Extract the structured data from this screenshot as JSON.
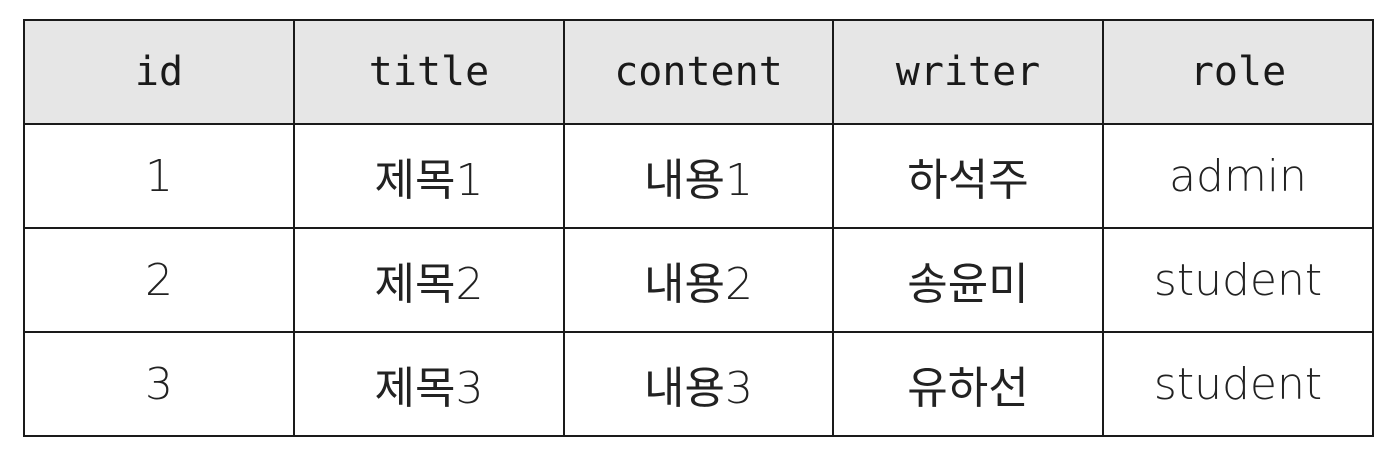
{
  "table": {
    "columns": [
      "id",
      "title",
      "content",
      "writer",
      "role"
    ],
    "rows": [
      [
        "1",
        "제목1",
        "내용1",
        "하석주",
        "admin"
      ],
      [
        "2",
        "제목2",
        "내용2",
        "송윤미",
        "student"
      ],
      [
        "3",
        "제목3",
        "내용3",
        "유하선",
        "student"
      ]
    ]
  },
  "colors": {
    "header_bg": "#e6e6e6",
    "border": "#1a1a1a",
    "cell_bg": "#ffffff"
  }
}
